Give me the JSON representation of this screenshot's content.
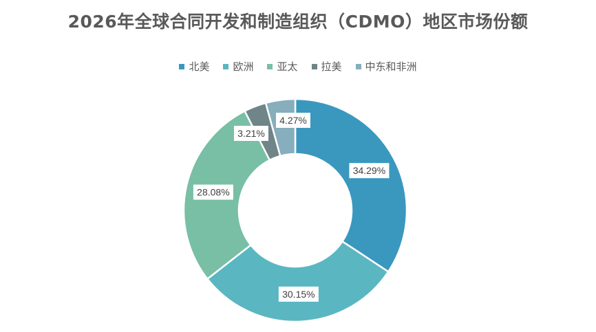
{
  "chart_data": {
    "type": "pie",
    "variant": "donut",
    "title": "2026年全球合同开发和制造组织（CDMO）地区市场份额",
    "legend_position": "top",
    "categories": [
      "北美",
      "欧洲",
      "亚太",
      "拉美",
      "中东和非洲"
    ],
    "values": [
      34.29,
      30.15,
      28.08,
      3.21,
      4.27
    ],
    "value_labels": [
      "34.29%",
      "30.15%",
      "28.08%",
      "3.21%",
      "4.27%"
    ],
    "colors": [
      "#3A98BF",
      "#5AB7C1",
      "#78BFA5",
      "#6F8587",
      "#86AEBC"
    ],
    "unit": "%"
  }
}
